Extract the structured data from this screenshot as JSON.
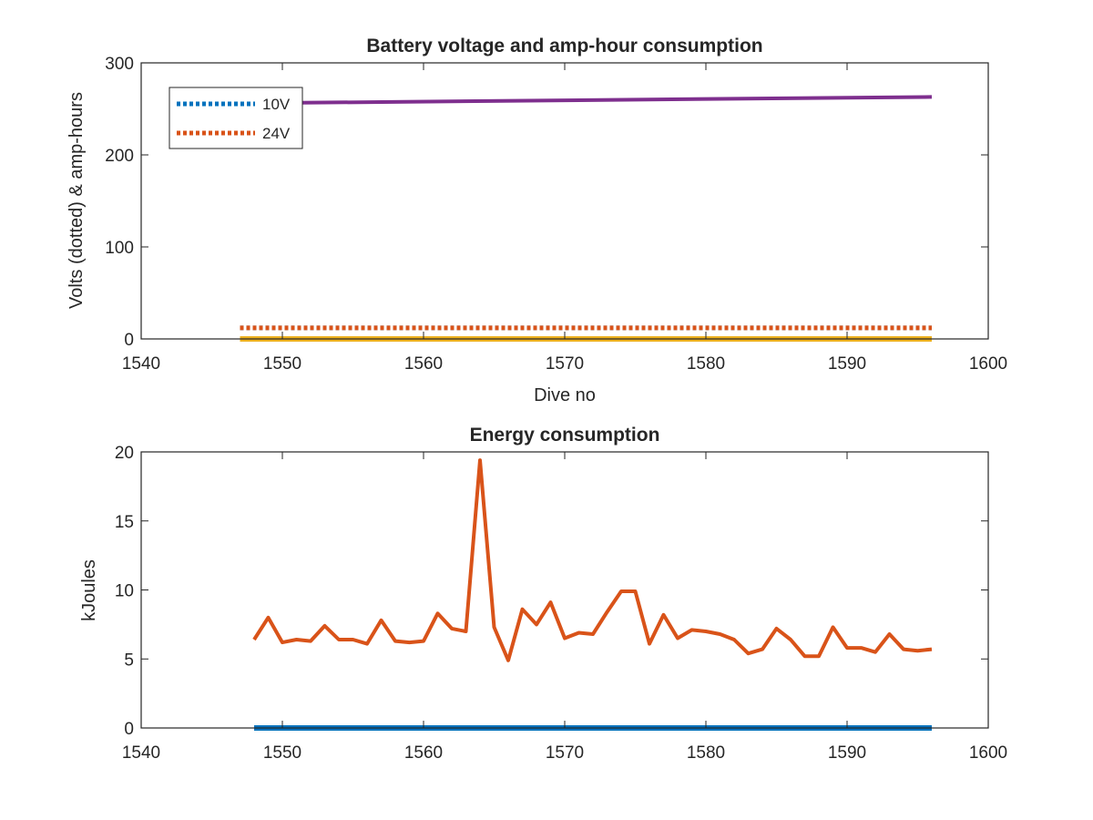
{
  "chart_data": [
    {
      "type": "line",
      "title": "Battery voltage and amp-hour consumption",
      "xlabel": "Dive no",
      "ylabel": "Volts (dotted) & amp-hours",
      "xlim": [
        1540,
        1600
      ],
      "ylim": [
        0,
        300
      ],
      "xticks": [
        "1540",
        "1550",
        "1560",
        "1570",
        "1580",
        "1590",
        "1600"
      ],
      "yticks": [
        "0",
        "100",
        "200",
        "300"
      ],
      "grid": false,
      "legend": {
        "placement": "top-left",
        "entries": [
          "10V",
          "24V"
        ]
      },
      "series": [
        {
          "name": "10V",
          "style": "dotted",
          "color": "#0072BD",
          "x": [
            1547,
            1596
          ],
          "y": [
            12,
            12
          ]
        },
        {
          "name": "24V",
          "style": "dotted",
          "color": "#D95319",
          "x": [
            1547,
            1596
          ],
          "y": [
            12,
            12
          ]
        },
        {
          "style": "solid",
          "color": "#7E2F8E",
          "x": [
            1547,
            1596
          ],
          "y": [
            256,
            263
          ]
        },
        {
          "style": "solid",
          "color": "#EDB120",
          "x": [
            1547,
            1596
          ],
          "y": [
            0,
            0
          ]
        }
      ]
    },
    {
      "type": "line",
      "title": "Energy consumption",
      "xlabel": "",
      "ylabel": "kJoules",
      "xlim": [
        1540,
        1600
      ],
      "ylim": [
        0,
        20
      ],
      "xticks": [
        "1540",
        "1550",
        "1560",
        "1570",
        "1580",
        "1590",
        "1600"
      ],
      "yticks": [
        "0",
        "5",
        "10",
        "15",
        "20"
      ],
      "grid": false,
      "series": [
        {
          "style": "solid",
          "color": "#D95319",
          "x": [
            1548,
            1549,
            1550,
            1551,
            1552,
            1553,
            1554,
            1555,
            1556,
            1557,
            1558,
            1559,
            1560,
            1561,
            1562,
            1563,
            1564,
            1565,
            1566,
            1567,
            1568,
            1569,
            1570,
            1571,
            1572,
            1573,
            1574,
            1575,
            1576,
            1577,
            1578,
            1579,
            1580,
            1581,
            1582,
            1583,
            1584,
            1585,
            1586,
            1587,
            1588,
            1589,
            1590,
            1591,
            1592,
            1593,
            1594,
            1595,
            1596
          ],
          "y": [
            6.4,
            8.0,
            6.2,
            6.4,
            6.3,
            7.4,
            6.4,
            6.4,
            6.1,
            7.8,
            6.3,
            6.2,
            6.3,
            8.3,
            7.2,
            7.0,
            19.4,
            7.3,
            4.9,
            8.6,
            7.5,
            9.1,
            6.5,
            6.9,
            6.8,
            8.4,
            9.9,
            9.9,
            6.1,
            8.2,
            6.5,
            7.1,
            7.0,
            6.8,
            6.4,
            5.4,
            5.7,
            7.2,
            6.4,
            5.2,
            5.2,
            7.3,
            5.8,
            5.8,
            5.5,
            6.8,
            5.7,
            5.6,
            5.7
          ]
        },
        {
          "style": "solid",
          "color": "#0072BD",
          "x": [
            1548,
            1596
          ],
          "y": [
            0,
            0
          ]
        }
      ]
    }
  ]
}
